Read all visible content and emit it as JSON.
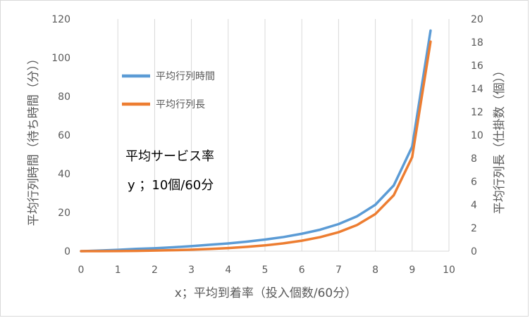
{
  "chart_data": {
    "type": "line",
    "xlabel": "x；平均到着率（投入個数/60分）",
    "ylabel_left": "平均行列時間（待ち時間（分））",
    "ylabel_right": "平均行列長（仕掛数（個））",
    "xlim": [
      0,
      10
    ],
    "ylim_left": [
      0,
      120
    ],
    "ylim_right": [
      0,
      20
    ],
    "x_ticks": [
      "0",
      "1",
      "2",
      "3",
      "4",
      "5",
      "6",
      "7",
      "8",
      "9",
      "10"
    ],
    "y_left_ticks": [
      "0",
      "20",
      "40",
      "60",
      "80",
      "100",
      "120"
    ],
    "y_right_ticks": [
      "0",
      "2",
      "4",
      "6",
      "8",
      "10",
      "12",
      "14",
      "16",
      "18",
      "20"
    ],
    "grid": "vertical",
    "legend_position": "upper-left",
    "annotation_line1": "平均サービス率",
    "annotation_line2": "y ；10個/60分",
    "series": [
      {
        "name": "平均行列時間",
        "axis": "left",
        "color": "#5b9bd5",
        "x": [
          0,
          0.5,
          1,
          1.5,
          2,
          2.5,
          3,
          3.5,
          4,
          4.5,
          5,
          5.5,
          6,
          6.5,
          7,
          7.5,
          8,
          8.5,
          9,
          9.5
        ],
        "values": [
          0,
          0.3,
          0.7,
          1.2,
          1.5,
          2.0,
          2.6,
          3.3,
          4.0,
          4.9,
          6.0,
          7.3,
          9.0,
          11.1,
          14.0,
          18.0,
          24.0,
          34.0,
          54.0,
          114.0
        ]
      },
      {
        "name": "平均行列長",
        "axis": "right",
        "color": "#ed7d31",
        "x": [
          0,
          0.5,
          1,
          1.5,
          2,
          2.5,
          3,
          3.5,
          4,
          4.5,
          5,
          5.5,
          6,
          6.5,
          7,
          7.5,
          8,
          8.5,
          9,
          9.5
        ],
        "values": [
          0,
          0.003,
          0.011,
          0.026,
          0.05,
          0.083,
          0.129,
          0.188,
          0.267,
          0.368,
          0.5,
          0.672,
          0.9,
          1.207,
          1.633,
          2.25,
          3.2,
          4.817,
          8.1,
          18.05
        ]
      }
    ]
  }
}
